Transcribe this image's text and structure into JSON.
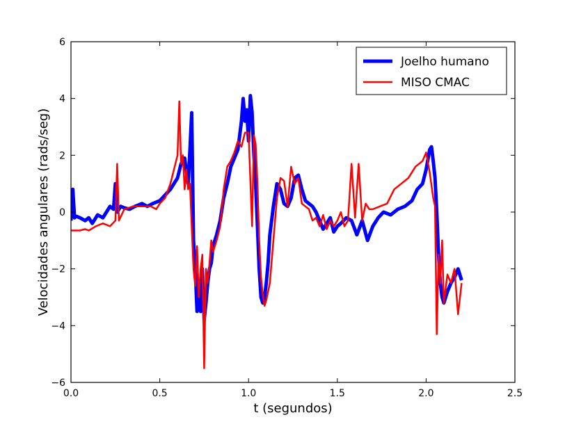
{
  "chart_data": {
    "type": "line",
    "xlabel": "t (segundos)",
    "ylabel": "Velocidades angulares (rads/seg)",
    "xlim": [
      0.0,
      2.5
    ],
    "ylim": [
      -6,
      6
    ],
    "xticks": [
      "0.0",
      "0.5",
      "1.0",
      "1.5",
      "2.0",
      "2.5"
    ],
    "yticks": [
      "6",
      "4",
      "2",
      "0",
      "−2",
      "−4",
      "−6"
    ],
    "grid": false,
    "legend_position": "top-right",
    "series": [
      {
        "name": "Joelho humano",
        "color": "#0000ff",
        "x": [
          0.0,
          0.01,
          0.02,
          0.03,
          0.05,
          0.08,
          0.1,
          0.12,
          0.15,
          0.18,
          0.2,
          0.22,
          0.24,
          0.25,
          0.26,
          0.28,
          0.3,
          0.33,
          0.36,
          0.4,
          0.43,
          0.46,
          0.5,
          0.53,
          0.56,
          0.58,
          0.6,
          0.62,
          0.64,
          0.66,
          0.67,
          0.68,
          0.69,
          0.7,
          0.71,
          0.72,
          0.73,
          0.74,
          0.75,
          0.76,
          0.77,
          0.78,
          0.79,
          0.8,
          0.82,
          0.84,
          0.86,
          0.88,
          0.9,
          0.92,
          0.94,
          0.96,
          0.97,
          0.98,
          0.99,
          1.0,
          1.01,
          1.02,
          1.03,
          1.04,
          1.05,
          1.06,
          1.07,
          1.08,
          1.09,
          1.1,
          1.11,
          1.12,
          1.14,
          1.16,
          1.18,
          1.2,
          1.22,
          1.24,
          1.26,
          1.28,
          1.3,
          1.32,
          1.34,
          1.36,
          1.38,
          1.4,
          1.42,
          1.44,
          1.46,
          1.48,
          1.5,
          1.52,
          1.55,
          1.58,
          1.61,
          1.64,
          1.67,
          1.7,
          1.73,
          1.76,
          1.8,
          1.84,
          1.88,
          1.92,
          1.95,
          1.98,
          2.0,
          2.02,
          2.03,
          2.04,
          2.05,
          2.06,
          2.07,
          2.08,
          2.09,
          2.1,
          2.12,
          2.14,
          2.16,
          2.18,
          2.2
        ],
        "values": [
          -0.3,
          0.8,
          -0.2,
          -0.15,
          -0.2,
          -0.3,
          -0.2,
          -0.4,
          -0.1,
          -0.2,
          0.0,
          0.2,
          0.1,
          1.0,
          0.0,
          0.2,
          0.15,
          0.1,
          0.2,
          0.3,
          0.2,
          0.3,
          0.4,
          0.6,
          0.8,
          1.0,
          1.2,
          1.7,
          1.9,
          1.0,
          2.2,
          3.5,
          -1.0,
          -2.0,
          -3.5,
          -2.5,
          -3.5,
          -2.0,
          -3.8,
          -3.2,
          -2.5,
          -2.0,
          -1.8,
          -1.2,
          -0.8,
          -0.3,
          0.5,
          1.0,
          1.6,
          1.9,
          2.2,
          3.2,
          4.0,
          3.2,
          3.6,
          2.5,
          4.1,
          3.5,
          2.0,
          1.0,
          -0.5,
          -2.0,
          -3.0,
          -3.2,
          -3.0,
          -2.5,
          -1.8,
          -0.8,
          0.2,
          1.0,
          0.8,
          0.3,
          0.2,
          0.5,
          1.2,
          1.3,
          0.8,
          0.4,
          0.3,
          0.2,
          0.0,
          -0.3,
          -0.6,
          -0.4,
          -0.2,
          -0.7,
          -0.5,
          -0.4,
          -0.2,
          -0.3,
          -0.8,
          -0.3,
          -1.0,
          -0.5,
          -0.2,
          0.0,
          -0.1,
          0.1,
          0.2,
          0.4,
          0.8,
          1.0,
          1.5,
          2.2,
          2.3,
          1.8,
          1.2,
          0.0,
          -1.5,
          -2.5,
          -3.0,
          -3.2,
          -2.8,
          -2.5,
          -2.3,
          -2.0,
          -2.4
        ]
      },
      {
        "name": "MISO CMAC",
        "color": "#ff0000",
        "x": [
          0.0,
          0.05,
          0.08,
          0.1,
          0.14,
          0.18,
          0.22,
          0.25,
          0.26,
          0.27,
          0.3,
          0.35,
          0.4,
          0.45,
          0.48,
          0.5,
          0.53,
          0.56,
          0.58,
          0.6,
          0.61,
          0.62,
          0.63,
          0.64,
          0.65,
          0.66,
          0.67,
          0.68,
          0.69,
          0.7,
          0.71,
          0.72,
          0.73,
          0.74,
          0.75,
          0.76,
          0.77,
          0.78,
          0.79,
          0.8,
          0.82,
          0.84,
          0.86,
          0.88,
          0.9,
          0.92,
          0.94,
          0.96,
          0.98,
          1.0,
          1.02,
          1.03,
          1.04,
          1.05,
          1.06,
          1.07,
          1.08,
          1.09,
          1.1,
          1.12,
          1.14,
          1.16,
          1.18,
          1.2,
          1.22,
          1.24,
          1.26,
          1.28,
          1.3,
          1.32,
          1.34,
          1.36,
          1.38,
          1.4,
          1.42,
          1.44,
          1.46,
          1.48,
          1.5,
          1.52,
          1.54,
          1.56,
          1.58,
          1.6,
          1.62,
          1.64,
          1.66,
          1.68,
          1.7,
          1.74,
          1.78,
          1.82,
          1.86,
          1.9,
          1.94,
          1.98,
          2.0,
          2.02,
          2.04,
          2.05,
          2.06,
          2.07,
          2.08,
          2.09,
          2.1,
          2.12,
          2.14,
          2.16,
          2.18,
          2.2
        ],
        "values": [
          -0.65,
          -0.65,
          -0.6,
          -0.65,
          -0.5,
          -0.4,
          -0.5,
          -0.3,
          1.7,
          -0.3,
          0.1,
          0.2,
          0.2,
          0.2,
          0.1,
          0.3,
          0.5,
          1.0,
          1.5,
          2.0,
          3.9,
          1.7,
          2.0,
          0.8,
          1.5,
          0.8,
          1.0,
          -0.5,
          -2.0,
          -2.6,
          -1.2,
          -3.0,
          -2.0,
          -1.5,
          -5.5,
          -2.0,
          -2.5,
          -1.8,
          -1.0,
          -1.4,
          -1.0,
          -0.5,
          0.8,
          1.6,
          1.8,
          2.1,
          2.5,
          2.3,
          2.8,
          2.8,
          -0.5,
          2.7,
          2.4,
          1.0,
          -1.0,
          -2.3,
          -2.9,
          -3.3,
          -3.1,
          -2.5,
          -1.0,
          0.5,
          1.2,
          1.1,
          0.2,
          1.6,
          1.0,
          1.2,
          0.3,
          0.2,
          0.1,
          -0.3,
          -0.2,
          -0.5,
          -0.1,
          -0.6,
          -0.3,
          -0.5,
          -0.3,
          0.0,
          -0.5,
          -0.3,
          1.7,
          -0.2,
          1.7,
          -0.3,
          0.3,
          0.1,
          0.1,
          0.2,
          0.3,
          0.8,
          1.0,
          1.2,
          1.6,
          1.8,
          2.1,
          1.4,
          0.5,
          0.2,
          -4.3,
          -1.5,
          -2.5,
          -1.0,
          -3.2,
          -2.2,
          -2.5,
          -2.0,
          -3.6,
          -2.5
        ]
      }
    ]
  }
}
